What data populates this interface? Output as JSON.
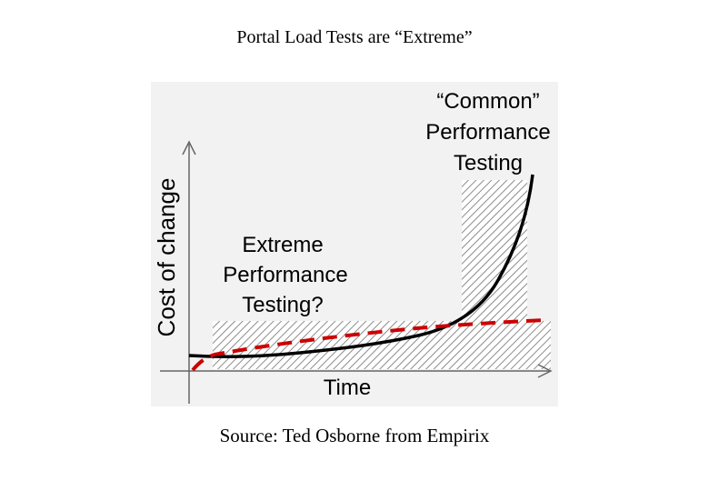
{
  "slide": {
    "title": "Portal Load Tests are “Extreme”",
    "source": "Source: Ted Osborne from Empirix"
  },
  "diagram": {
    "y_axis_label": "Cost of change",
    "x_axis_label": "Time",
    "common_label_lines": [
      "“Common”",
      "Performance",
      "Testing"
    ],
    "extreme_label_lines": [
      "Extreme",
      "Performance",
      "Testing?"
    ],
    "colors": {
      "background": "#f2f2f2",
      "curve": "#000000",
      "dashed_line": "#cc0000",
      "hatch": "#8c8c8c",
      "axis": "#666666"
    }
  }
}
